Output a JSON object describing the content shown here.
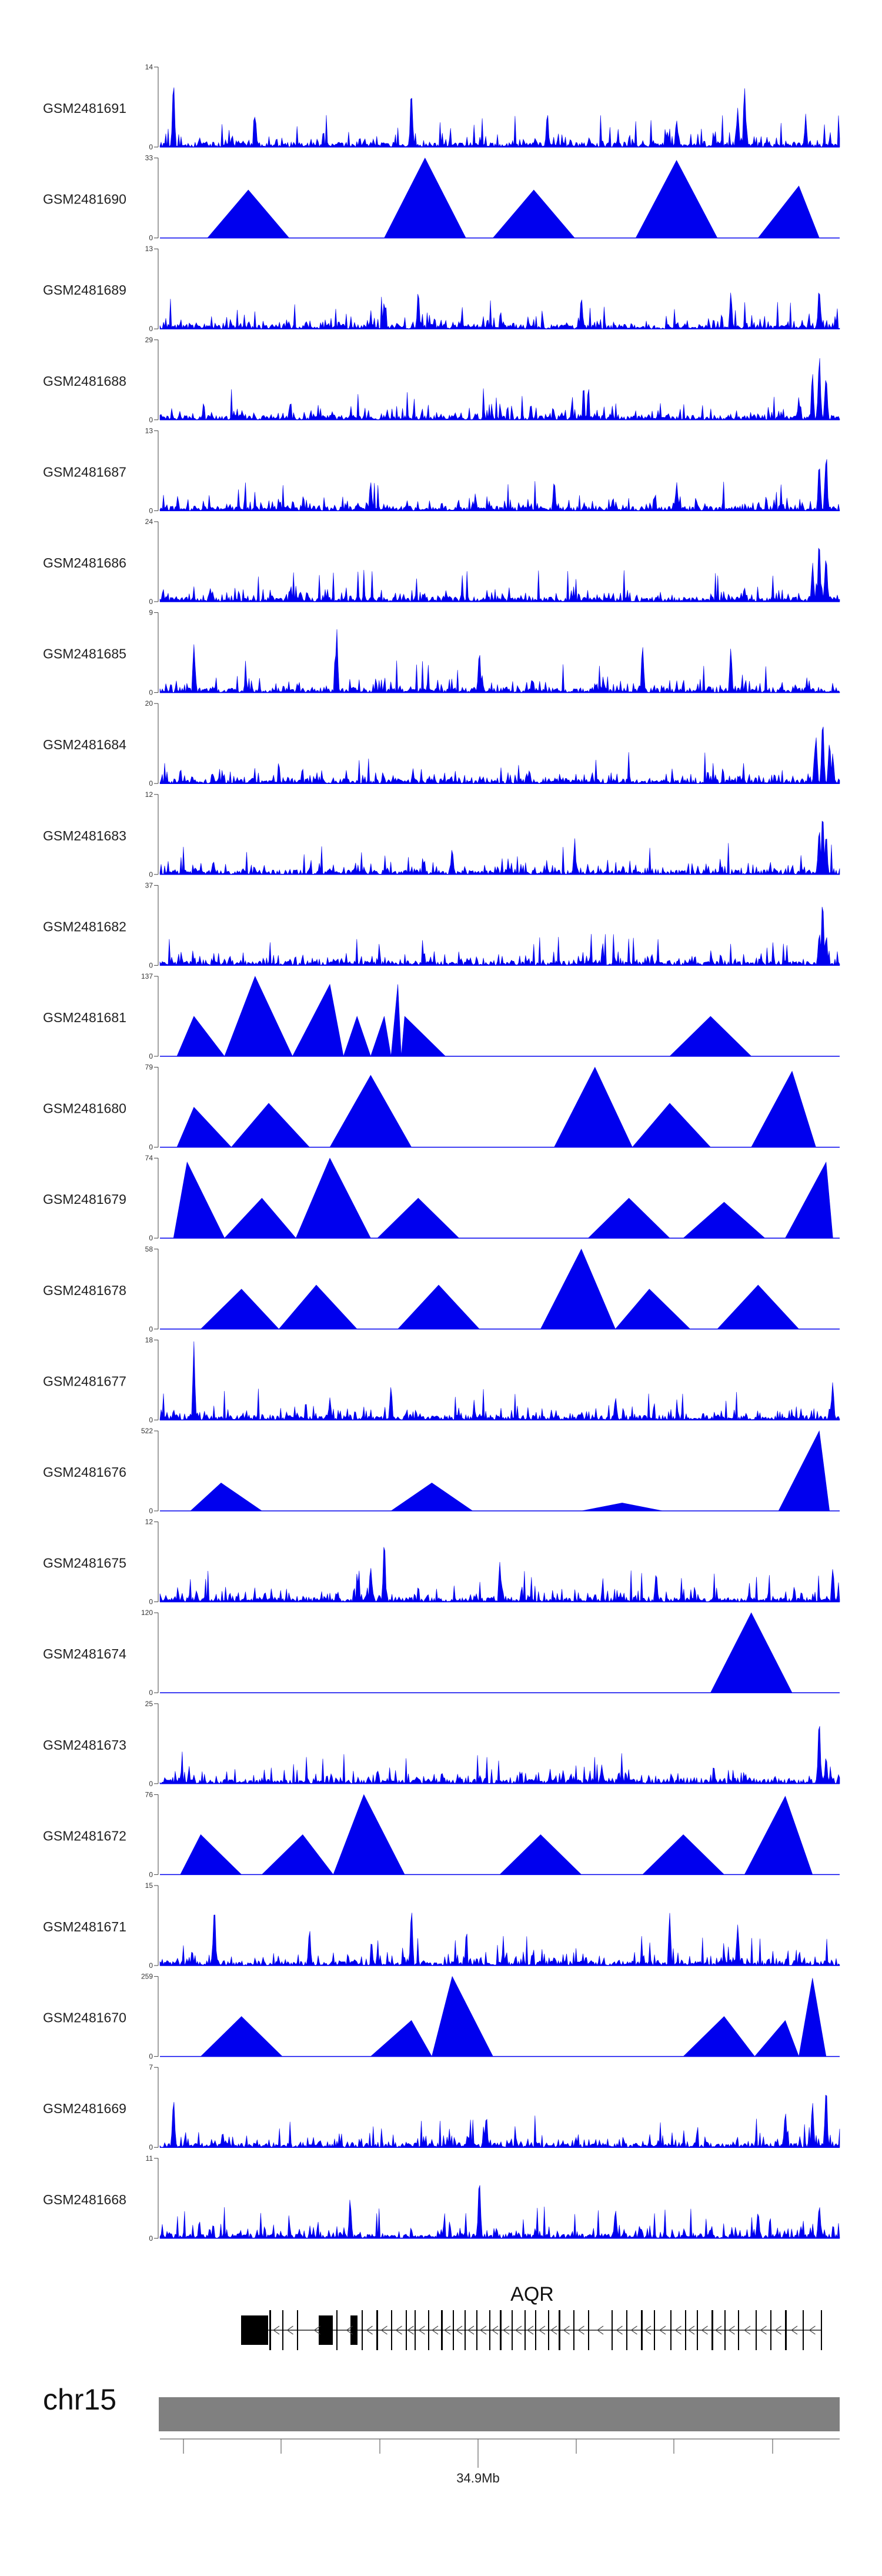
{
  "chart_data": {
    "type": "area",
    "color": "#0000ee",
    "chromosome": "chr15",
    "gene": "AQR",
    "position_label": "34.9Mb",
    "series": [
      {
        "name": "GSM2481691",
        "ymax": 14,
        "style": "dense",
        "peaks": [
          [
            0.02,
            1.0
          ],
          [
            0.37,
            1.0
          ],
          [
            0.14,
            0.55
          ],
          [
            0.57,
            0.5
          ],
          [
            0.76,
            0.45
          ],
          [
            0.85,
            0.6
          ],
          [
            0.86,
            0.85
          ],
          [
            0.95,
            0.45
          ]
        ]
      },
      {
        "name": "GSM2481690",
        "ymax": 33,
        "style": "triangles",
        "peaks": [
          [
            0.39,
            1.0
          ],
          [
            0.76,
            0.97
          ],
          [
            0.13,
            0.6
          ],
          [
            0.55,
            0.6
          ],
          [
            0.94,
            0.65
          ]
        ]
      },
      {
        "name": "GSM2481689",
        "ymax": 13,
        "style": "dense",
        "peaks": [
          [
            0.97,
            0.7
          ],
          [
            0.38,
            0.55
          ],
          [
            0.62,
            0.5
          ],
          [
            0.84,
            0.6
          ],
          [
            0.33,
            0.45
          ]
        ]
      },
      {
        "name": "GSM2481688",
        "ymax": 29,
        "style": "dense",
        "peaks": [
          [
            0.97,
            1.0
          ],
          [
            0.98,
            0.8
          ],
          [
            0.96,
            0.7
          ],
          [
            0.94,
            0.35
          ]
        ]
      },
      {
        "name": "GSM2481687",
        "ymax": 13,
        "style": "dense",
        "peaks": [
          [
            0.98,
            0.95
          ],
          [
            0.97,
            0.8
          ],
          [
            0.58,
            0.5
          ],
          [
            0.31,
            0.45
          ],
          [
            0.76,
            0.45
          ]
        ]
      },
      {
        "name": "GSM2481686",
        "ymax": 24,
        "style": "dense",
        "peaks": [
          [
            0.97,
            0.95
          ],
          [
            0.98,
            0.85
          ],
          [
            0.96,
            0.6
          ],
          [
            0.86,
            0.25
          ]
        ]
      },
      {
        "name": "GSM2481685",
        "ymax": 9,
        "style": "dense",
        "peaks": [
          [
            0.26,
            0.95
          ],
          [
            0.05,
            0.75
          ],
          [
            0.71,
            0.7
          ],
          [
            0.47,
            0.65
          ],
          [
            0.84,
            0.7
          ]
        ]
      },
      {
        "name": "GSM2481684",
        "ymax": 20,
        "style": "dense",
        "peaks": [
          [
            0.975,
            1.0
          ],
          [
            0.965,
            0.8
          ],
          [
            0.985,
            0.75
          ],
          [
            0.99,
            0.5
          ]
        ]
      },
      {
        "name": "GSM2481683",
        "ymax": 12,
        "style": "dense",
        "peaks": [
          [
            0.975,
            1.0
          ],
          [
            0.97,
            0.85
          ],
          [
            0.98,
            0.7
          ],
          [
            0.61,
            0.5
          ],
          [
            0.43,
            0.4
          ]
        ]
      },
      {
        "name": "GSM2481682",
        "ymax": 37,
        "style": "dense",
        "peaks": [
          [
            0.975,
            1.0
          ],
          [
            0.97,
            0.6
          ],
          [
            0.98,
            0.5
          ]
        ]
      },
      {
        "name": "GSM2481681",
        "ymax": 137,
        "style": "triangles",
        "peaks": [
          [
            0.14,
            1.0
          ],
          [
            0.05,
            0.5
          ],
          [
            0.25,
            0.9
          ],
          [
            0.35,
            0.9
          ],
          [
            0.29,
            0.5
          ],
          [
            0.33,
            0.5
          ],
          [
            0.81,
            0.5
          ],
          [
            0.36,
            0.5
          ]
        ]
      },
      {
        "name": "GSM2481680",
        "ymax": 79,
        "style": "triangles",
        "peaks": [
          [
            0.64,
            1.0
          ],
          [
            0.93,
            0.95
          ],
          [
            0.31,
            0.9
          ],
          [
            0.16,
            0.55
          ],
          [
            0.75,
            0.55
          ],
          [
            0.05,
            0.5
          ]
        ]
      },
      {
        "name": "GSM2481679",
        "ymax": 74,
        "style": "triangles",
        "peaks": [
          [
            0.25,
            1.0
          ],
          [
            0.04,
            0.95
          ],
          [
            0.98,
            0.95
          ],
          [
            0.15,
            0.5
          ],
          [
            0.69,
            0.5
          ],
          [
            0.38,
            0.5
          ],
          [
            0.83,
            0.45
          ]
        ]
      },
      {
        "name": "GSM2481678",
        "ymax": 58,
        "style": "triangles",
        "peaks": [
          [
            0.62,
            1.0
          ],
          [
            0.23,
            0.55
          ],
          [
            0.12,
            0.5
          ],
          [
            0.41,
            0.55
          ],
          [
            0.88,
            0.55
          ],
          [
            0.72,
            0.5
          ]
        ]
      },
      {
        "name": "GSM2481677",
        "ymax": 18,
        "style": "dense",
        "peaks": [
          [
            0.05,
            1.0
          ],
          [
            0.99,
            0.6
          ],
          [
            0.34,
            0.5
          ],
          [
            0.25,
            0.35
          ],
          [
            0.67,
            0.35
          ]
        ]
      },
      {
        "name": "GSM2481676",
        "ymax": 522,
        "style": "triangles",
        "peaks": [
          [
            0.97,
            1.0
          ],
          [
            0.09,
            0.35
          ],
          [
            0.4,
            0.35
          ],
          [
            0.68,
            0.1
          ]
        ]
      },
      {
        "name": "GSM2481675",
        "ymax": 12,
        "style": "dense",
        "peaks": [
          [
            0.33,
            1.0
          ],
          [
            0.99,
            0.55
          ],
          [
            0.31,
            0.6
          ],
          [
            0.5,
            0.55
          ],
          [
            0.73,
            0.5
          ]
        ]
      },
      {
        "name": "GSM2481674",
        "ymax": 120,
        "style": "triangles",
        "peaks": [
          [
            0.87,
            1.0
          ]
        ]
      },
      {
        "name": "GSM2481673",
        "ymax": 25,
        "style": "dense",
        "peaks": [
          [
            0.97,
            1.0
          ],
          [
            0.98,
            0.45
          ],
          [
            0.65,
            0.3
          ],
          [
            0.32,
            0.25
          ]
        ]
      },
      {
        "name": "GSM2481672",
        "ymax": 76,
        "style": "triangles",
        "peaks": [
          [
            0.3,
            1.0
          ],
          [
            0.92,
            0.98
          ],
          [
            0.21,
            0.5
          ],
          [
            0.56,
            0.5
          ],
          [
            0.77,
            0.5
          ],
          [
            0.06,
            0.5
          ]
        ]
      },
      {
        "name": "GSM2481671",
        "ymax": 15,
        "style": "dense",
        "peaks": [
          [
            0.08,
            1.0
          ],
          [
            0.37,
            0.85
          ],
          [
            0.75,
            0.75
          ],
          [
            0.85,
            0.6
          ],
          [
            0.22,
            0.55
          ]
        ]
      },
      {
        "name": "GSM2481670",
        "ymax": 259,
        "style": "triangles",
        "peaks": [
          [
            0.43,
            1.0
          ],
          [
            0.96,
            0.98
          ],
          [
            0.12,
            0.5
          ],
          [
            0.37,
            0.45
          ],
          [
            0.83,
            0.5
          ],
          [
            0.92,
            0.45
          ]
        ]
      },
      {
        "name": "GSM2481669",
        "ymax": 7,
        "style": "dense",
        "peaks": [
          [
            0.98,
            1.0
          ],
          [
            0.02,
            0.8
          ],
          [
            0.92,
            0.6
          ],
          [
            0.96,
            0.7
          ],
          [
            0.48,
            0.5
          ]
        ]
      },
      {
        "name": "GSM2481668",
        "ymax": 11,
        "style": "dense",
        "peaks": [
          [
            0.47,
            1.0
          ],
          [
            0.28,
            0.65
          ],
          [
            0.67,
            0.5
          ],
          [
            0.88,
            0.5
          ],
          [
            0.97,
            0.55
          ]
        ]
      }
    ]
  }
}
